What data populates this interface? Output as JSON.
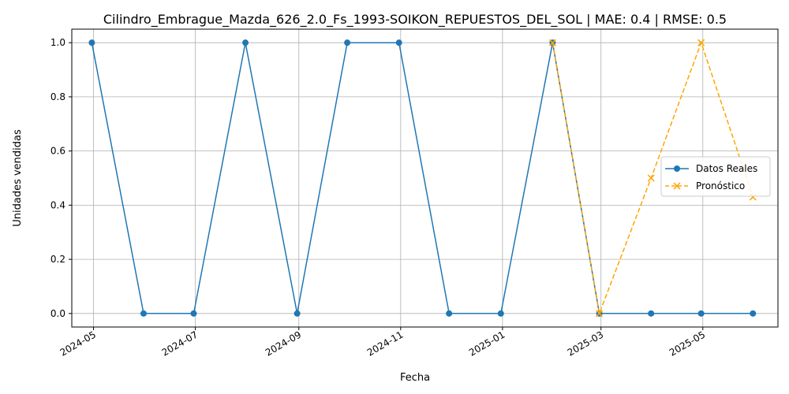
{
  "chart_data": {
    "type": "line",
    "title": "Cilindro_Embrague_Mazda_626_2.0_Fs_1993-SOIKON_REPUESTOS_DEL_SOL | MAE: 0.4 | RMSE: 0.5",
    "xlabel": "Fecha",
    "ylabel": "Unidades vendidas",
    "xlim": [
      "2024-04-18",
      "2025-06-15"
    ],
    "ylim": [
      -0.05,
      1.05
    ],
    "x_ticks": [
      "2024-05",
      "2024-07",
      "2024-09",
      "2024-11",
      "2025-01",
      "2025-03",
      "2025-05"
    ],
    "y_ticks": [
      "0.0",
      "0.2",
      "0.4",
      "0.6",
      "0.8",
      "1.0"
    ],
    "grid": true,
    "legend_position": "center-right",
    "series": [
      {
        "name": "Datos Reales",
        "color": "#1f77b4",
        "style": "solid",
        "marker": "circle",
        "x": [
          "2024-04-30",
          "2024-05-31",
          "2024-06-30",
          "2024-07-31",
          "2024-08-31",
          "2024-09-30",
          "2024-10-31",
          "2024-11-30",
          "2024-12-31",
          "2025-01-31",
          "2025-02-28",
          "2025-03-31",
          "2025-04-30",
          "2025-05-31"
        ],
        "values": [
          1,
          0,
          0,
          1,
          0,
          1,
          1,
          0,
          0,
          1,
          0,
          0,
          0,
          0
        ]
      },
      {
        "name": "Pronóstico",
        "color": "#ffa500",
        "style": "dashed",
        "marker": "x",
        "x": [
          "2025-01-31",
          "2025-02-28",
          "2025-03-31",
          "2025-04-30",
          "2025-05-31"
        ],
        "values": [
          1.0,
          0.0,
          0.5,
          1.0,
          0.43
        ]
      }
    ]
  }
}
